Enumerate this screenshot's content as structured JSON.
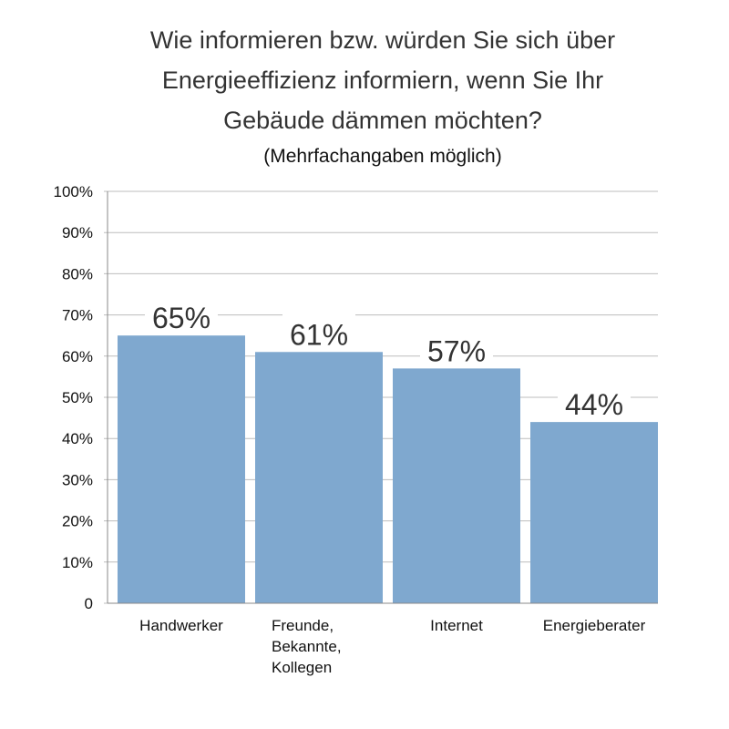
{
  "chart_data": {
    "type": "bar",
    "title_lines": [
      "Wie informieren bzw. würden Sie sich über",
      "Energieeffizienz informiern, wenn Sie Ihr",
      "Gebäude dämmen möchten?"
    ],
    "subtitle": "(Mehrfachangaben möglich)",
    "categories": [
      [
        "Handwerker"
      ],
      [
        "Freunde,",
        "Bekannte,",
        "Kollegen"
      ],
      [
        "Internet"
      ],
      [
        "Energieberater"
      ]
    ],
    "values": [
      65,
      61,
      57,
      44
    ],
    "data_labels": [
      "65%",
      "61%",
      "57%",
      "44%"
    ],
    "yticks": [
      0,
      10,
      20,
      30,
      40,
      50,
      60,
      70,
      80,
      90,
      100
    ],
    "ytick_labels": [
      "0",
      "10%",
      "20%",
      "30%",
      "40%",
      "50%",
      "60%",
      "70%",
      "80%",
      "90%",
      "100%"
    ],
    "ylim": [
      0,
      100
    ],
    "xlabel": "",
    "ylabel": "",
    "grid": true,
    "bar_color": "#7fa8cf",
    "grid_color": "#bdbdbd"
  }
}
